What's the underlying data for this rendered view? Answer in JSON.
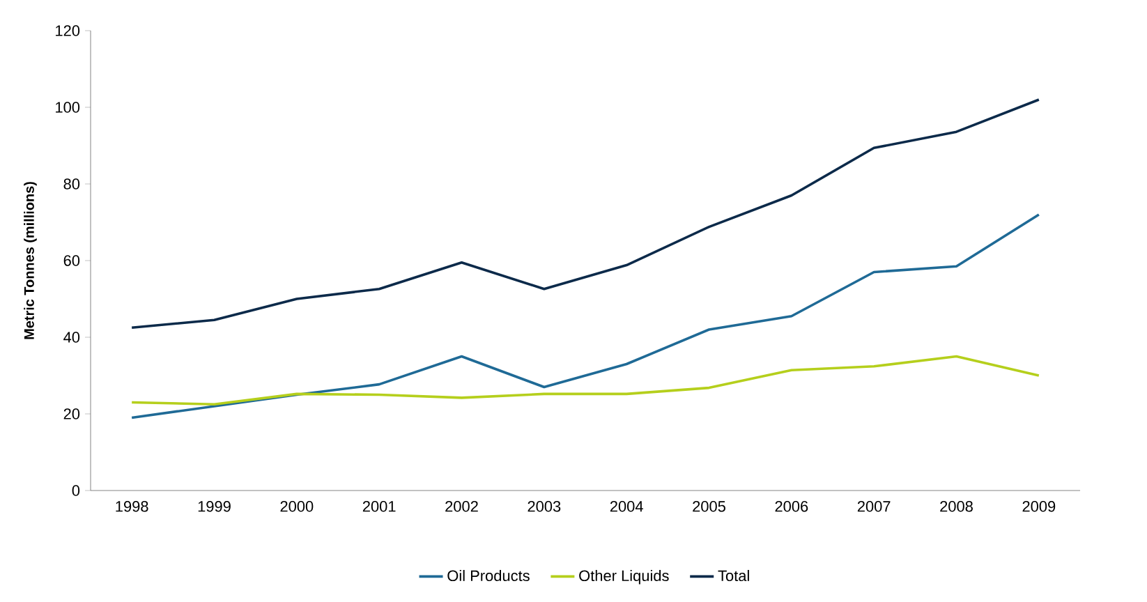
{
  "chart_data": {
    "type": "line",
    "ylabel": "Metric Tonnes (millions)",
    "categories": [
      "1998",
      "1999",
      "2000",
      "2001",
      "2002",
      "2003",
      "2004",
      "2005",
      "2006",
      "2007",
      "2008",
      "2009"
    ],
    "series": [
      {
        "name": "Oil Products",
        "color": "#1f6a96",
        "values": [
          19,
          22,
          25,
          27.7,
          35,
          27,
          33,
          42,
          45.5,
          57,
          58.5,
          72
        ]
      },
      {
        "name": "Other Liquids",
        "color": "#b5cf1c",
        "values": [
          23,
          22.5,
          25.2,
          25,
          24.2,
          25.2,
          25.2,
          26.8,
          31.4,
          32.4,
          35,
          30
        ]
      },
      {
        "name": "Total",
        "color": "#0c2a4a",
        "values": [
          42.5,
          44.5,
          50,
          52.6,
          59.5,
          52.6,
          58.8,
          68.8,
          77,
          89.4,
          93.6,
          102
        ]
      }
    ],
    "ylim": [
      0,
      120
    ],
    "yticks": [
      0,
      20,
      40,
      60,
      80,
      100,
      120
    ],
    "grid": false,
    "legend": "bottom",
    "marker": "none",
    "line_style": "solid"
  }
}
